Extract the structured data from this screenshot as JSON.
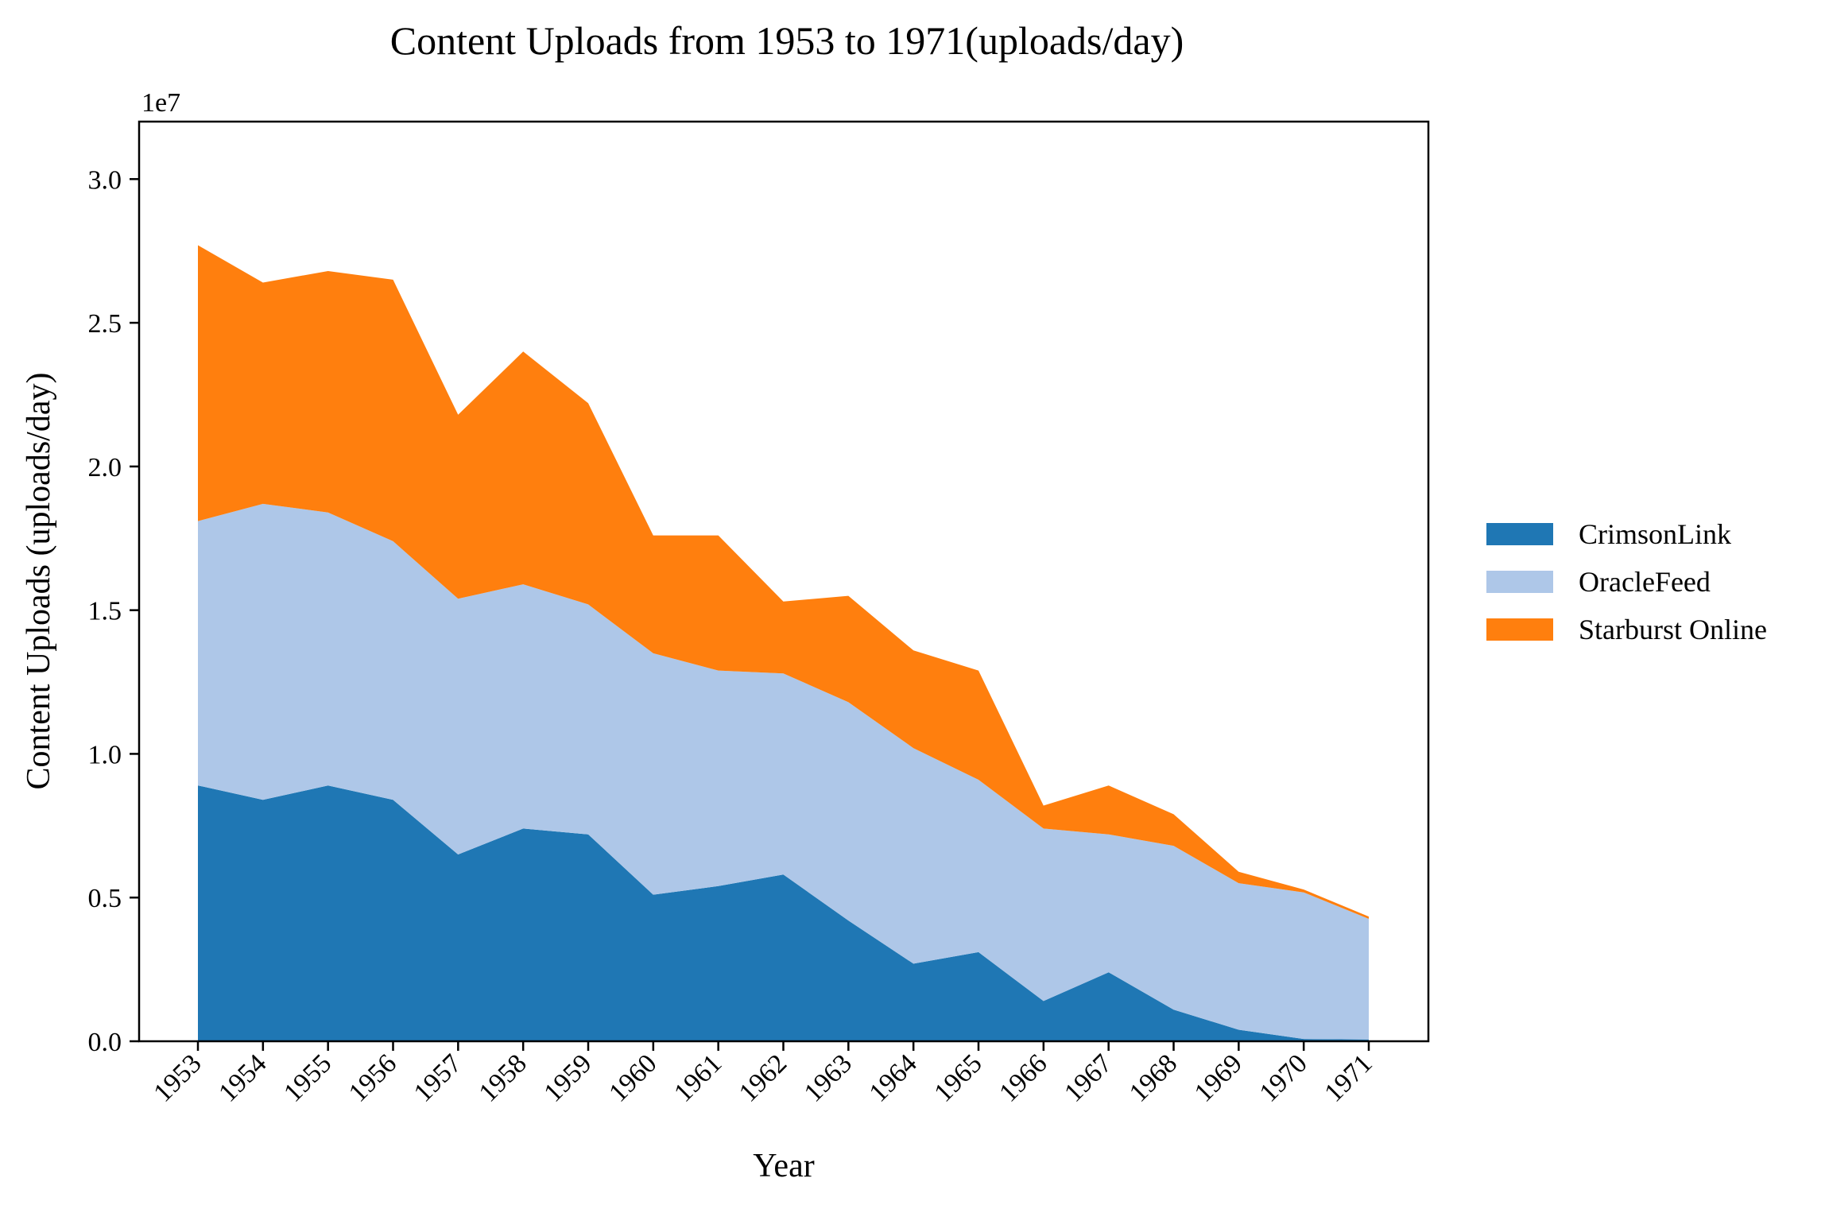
{
  "chart_data": {
    "type": "area",
    "stacked": true,
    "title": "Content Uploads from 1953 to 1971(uploads/day)",
    "xlabel": "Year",
    "ylabel": "Content Uploads (uploads/day)",
    "y_offset_label": "1e7",
    "ylim": [
      0,
      32000000
    ],
    "yticks": [
      0,
      5000000,
      10000000,
      15000000,
      20000000,
      25000000,
      30000000
    ],
    "ytick_labels": [
      "0.0",
      "0.5",
      "1.0",
      "1.5",
      "2.0",
      "2.5",
      "3.0"
    ],
    "categories": [
      "1953",
      "1954",
      "1955",
      "1956",
      "1957",
      "1958",
      "1959",
      "1960",
      "1961",
      "1962",
      "1963",
      "1964",
      "1965",
      "1966",
      "1967",
      "1968",
      "1969",
      "1970",
      "1971"
    ],
    "legend_position": "right",
    "grid": false,
    "series": [
      {
        "name": "CrimsonLink",
        "color": "#1f77b4",
        "values": [
          8900000,
          8400000,
          8900000,
          8400000,
          6500000,
          7400000,
          7200000,
          5100000,
          5400000,
          5800000,
          4200000,
          2700000,
          3100000,
          1400000,
          2400000,
          1100000,
          400000,
          80000,
          60000
        ]
      },
      {
        "name": "OracleFeed",
        "color": "#aec7e8",
        "values": [
          9200000,
          10300000,
          9500000,
          9000000,
          8900000,
          8500000,
          8000000,
          8400000,
          7500000,
          7000000,
          7600000,
          7500000,
          6000000,
          6000000,
          4800000,
          5700000,
          5100000,
          5100000,
          4200000
        ]
      },
      {
        "name": "Starburst Online",
        "color": "#ff7f0e",
        "values": [
          9600000,
          7700000,
          8400000,
          9100000,
          6400000,
          8100000,
          7000000,
          4100000,
          4700000,
          2500000,
          3700000,
          3400000,
          3800000,
          800000,
          1700000,
          1100000,
          400000,
          100000,
          80000
        ]
      }
    ]
  }
}
